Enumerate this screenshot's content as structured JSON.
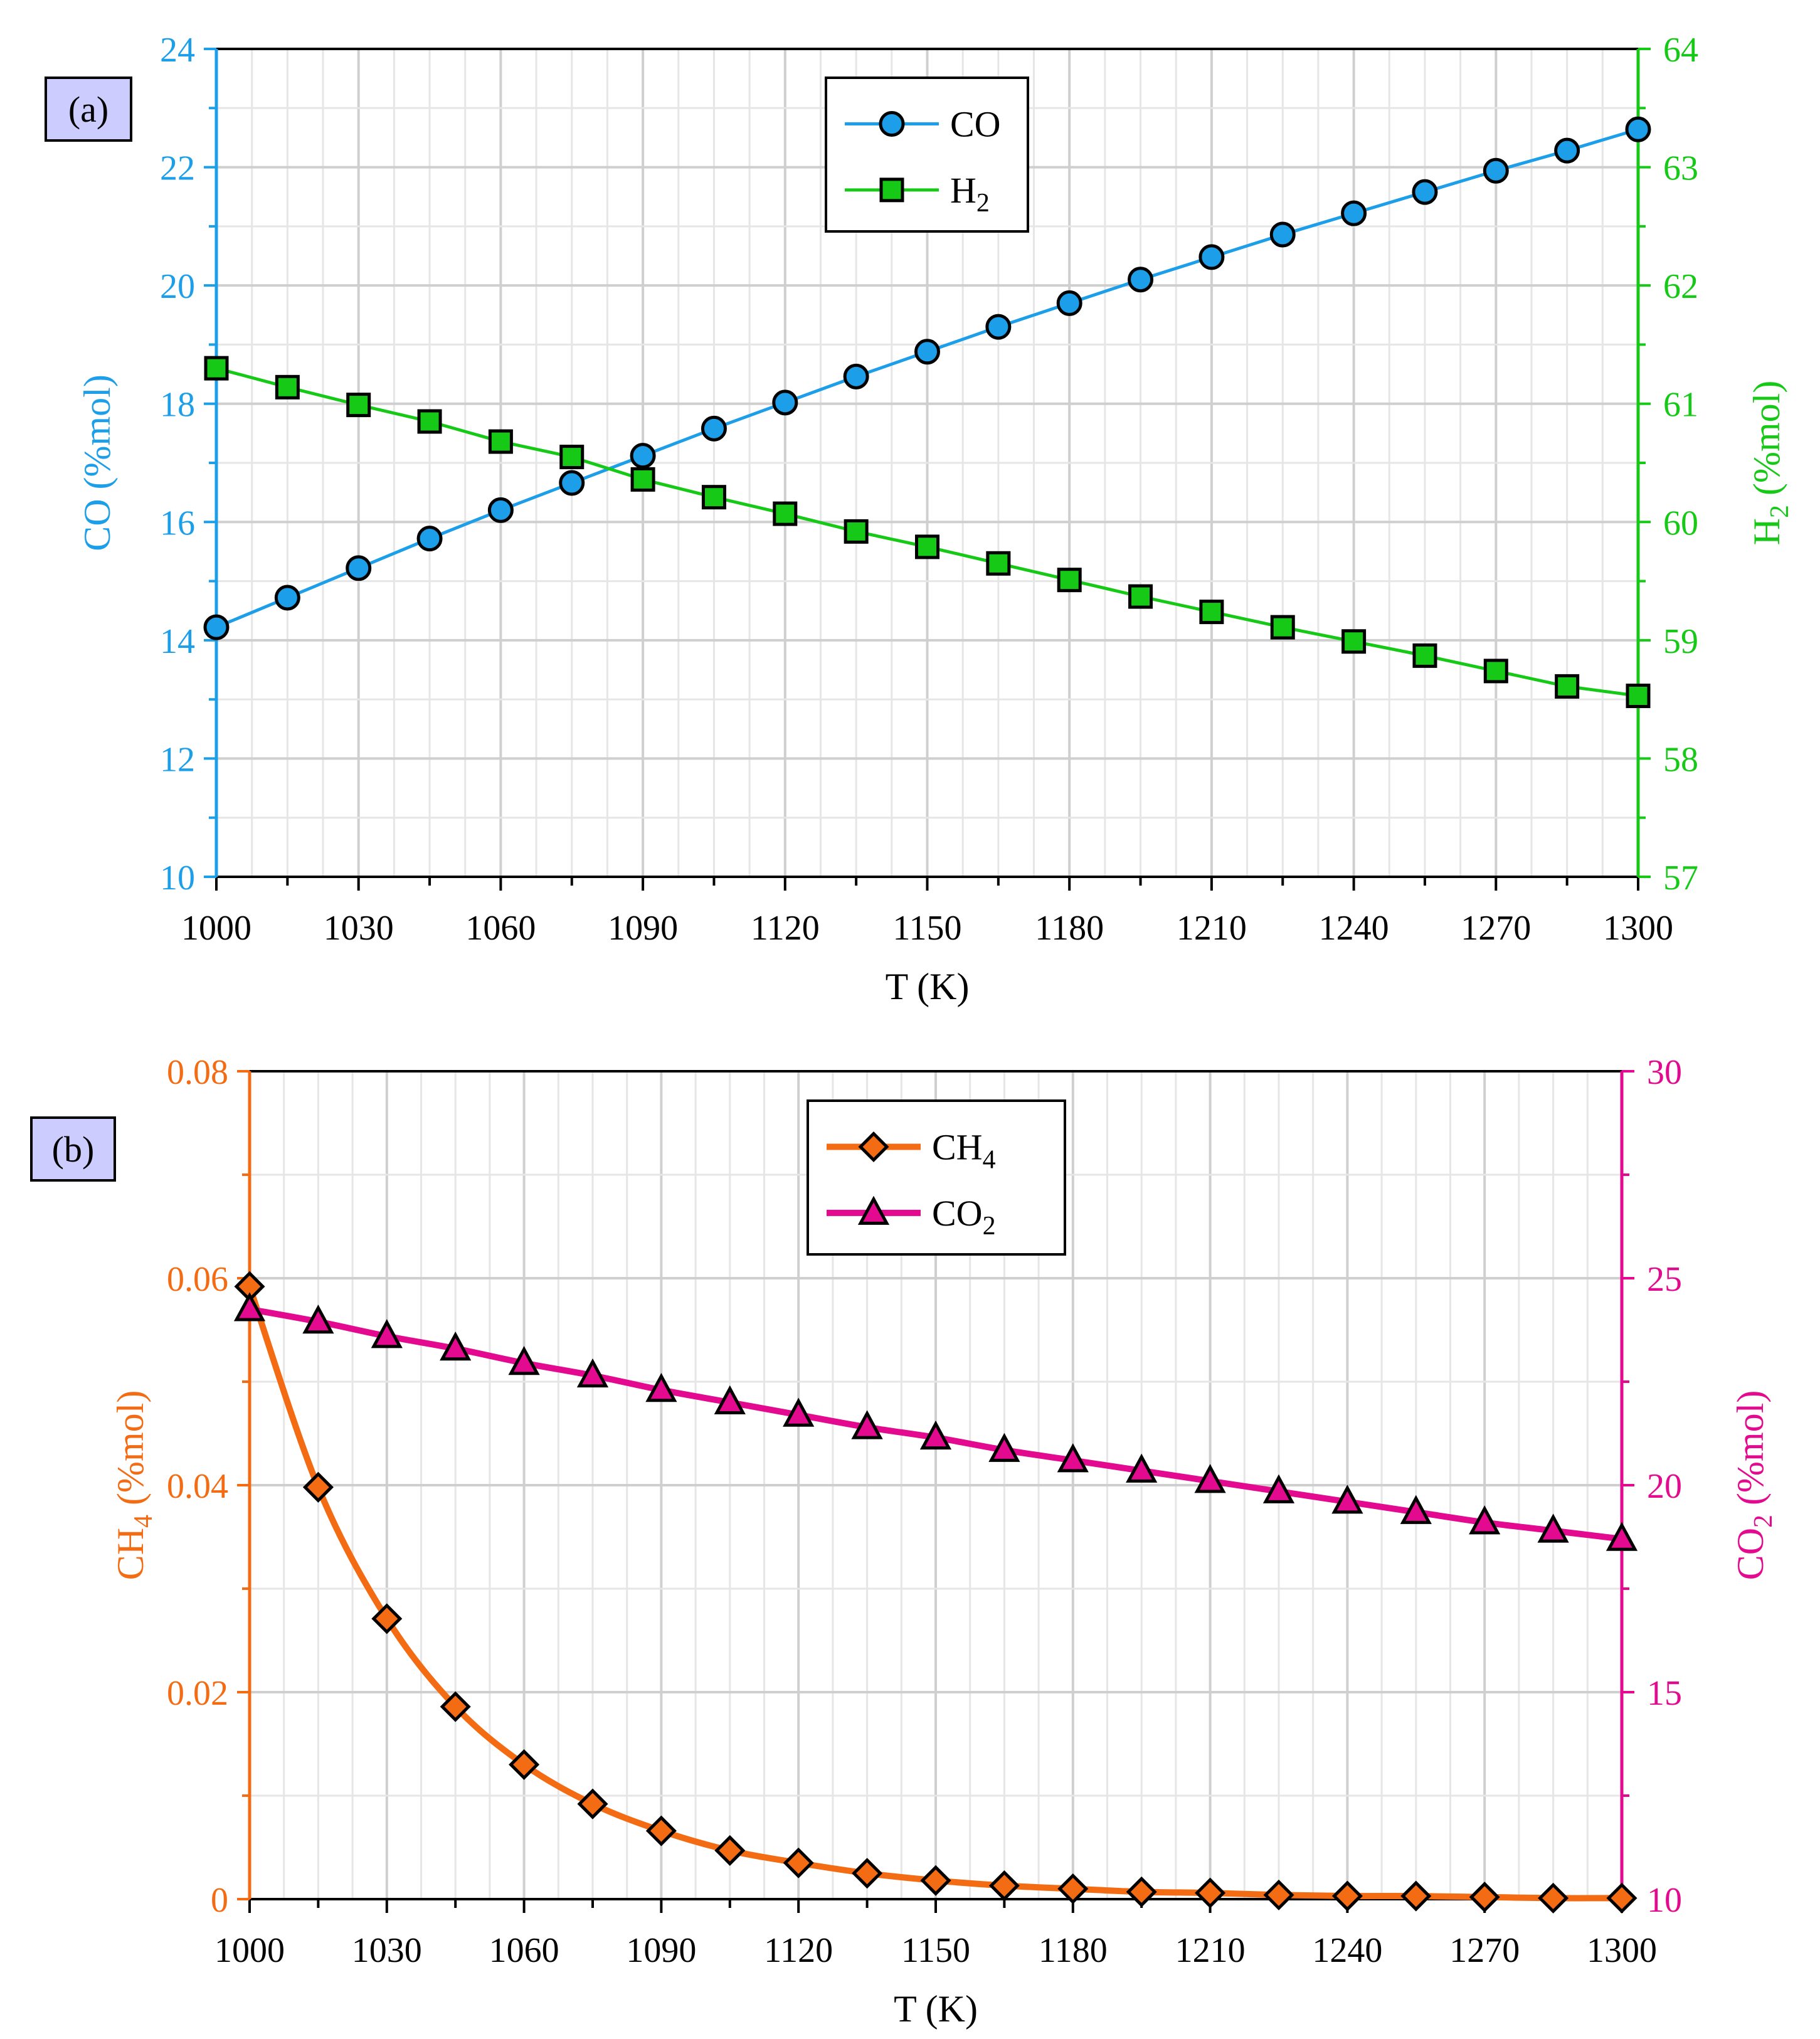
{
  "colors": {
    "co": "#1C9FE8",
    "h2": "#17C917",
    "ch4": "#F36B12",
    "co2": "#E30A8F",
    "grid": "#D6D6D6",
    "label_bg": "#CCCCFF"
  },
  "chart_data": [
    {
      "type": "line",
      "panel_label": "(a)",
      "xlabel": "T (K)",
      "xlim": [
        1000,
        1300
      ],
      "x_ticks": [
        "1000",
        "1030",
        "1060",
        "1090",
        "1120",
        "1150",
        "1180",
        "1210",
        "1240",
        "1270",
        "1300"
      ],
      "y_left": {
        "label": "CO (%mol)",
        "ylim": [
          10,
          24
        ],
        "ticks": [
          "10",
          "12",
          "14",
          "16",
          "18",
          "20",
          "22",
          "24"
        ]
      },
      "y_right": {
        "label": "H",
        "label_sub": "2",
        "label_rest": " (%mol)",
        "ylim": [
          57,
          64
        ],
        "ticks": [
          "57",
          "58",
          "59",
          "60",
          "61",
          "62",
          "63",
          "64"
        ]
      },
      "x": [
        1000,
        1015,
        1030,
        1045,
        1060,
        1075,
        1090,
        1105,
        1120,
        1135,
        1150,
        1165,
        1180,
        1195,
        1210,
        1225,
        1240,
        1255,
        1270,
        1285,
        1300
      ],
      "series": [
        {
          "name": "CO",
          "axis": "left",
          "marker": "circle",
          "values": [
            14.22,
            14.72,
            15.22,
            15.72,
            16.2,
            16.66,
            17.12,
            17.58,
            18.02,
            18.46,
            18.88,
            19.3,
            19.7,
            20.1,
            20.48,
            20.86,
            21.22,
            21.58,
            21.94,
            22.28,
            22.64
          ]
        },
        {
          "name": "H",
          "name_sub": "2",
          "axis": "right",
          "marker": "square",
          "values": [
            61.3,
            61.14,
            60.99,
            60.85,
            60.68,
            60.55,
            60.36,
            60.21,
            60.07,
            59.92,
            59.79,
            59.65,
            59.51,
            59.37,
            59.24,
            59.11,
            58.99,
            58.87,
            58.74,
            58.61,
            58.53
          ]
        }
      ]
    },
    {
      "type": "line",
      "panel_label": "(b)",
      "xlabel": "T (K)",
      "xlim": [
        1000,
        1300
      ],
      "x_ticks": [
        "1000",
        "1030",
        "1060",
        "1090",
        "1120",
        "1150",
        "1180",
        "1210",
        "1240",
        "1270",
        "1300"
      ],
      "y_left": {
        "label": "CH",
        "label_sub": "4",
        "label_rest": " (%mol)",
        "ylim": [
          0,
          0.08
        ],
        "ticks": [
          "0",
          "0.02",
          "0.04",
          "0.06",
          "0.08"
        ]
      },
      "y_right": {
        "label": "CO",
        "label_sub": "2",
        "label_rest": " (%mol)",
        "ylim": [
          10,
          30
        ],
        "ticks": [
          "10",
          "15",
          "20",
          "25",
          "30"
        ]
      },
      "x": [
        1000,
        1015,
        1030,
        1045,
        1060,
        1075,
        1090,
        1105,
        1120,
        1135,
        1150,
        1165,
        1180,
        1195,
        1210,
        1225,
        1240,
        1255,
        1270,
        1285,
        1300
      ],
      "series": [
        {
          "name": "CH",
          "name_sub": "4",
          "axis": "left",
          "marker": "diamond",
          "values": [
            0.0592,
            0.0398,
            0.0271,
            0.0186,
            0.013,
            0.0092,
            0.0066,
            0.0047,
            0.0035,
            0.0025,
            0.0018,
            0.0013,
            0.001,
            0.0007,
            0.0006,
            0.0004,
            0.0003,
            0.0003,
            0.0002,
            0.0001,
            0.0001
          ]
        },
        {
          "name": "CO",
          "name_sub": "2",
          "axis": "right",
          "marker": "triangle",
          "values": [
            24.25,
            23.95,
            23.6,
            23.3,
            22.95,
            22.65,
            22.3,
            22.0,
            21.7,
            21.4,
            21.15,
            20.85,
            20.6,
            20.35,
            20.1,
            19.85,
            19.6,
            19.35,
            19.1,
            18.9,
            18.7
          ]
        }
      ]
    }
  ]
}
